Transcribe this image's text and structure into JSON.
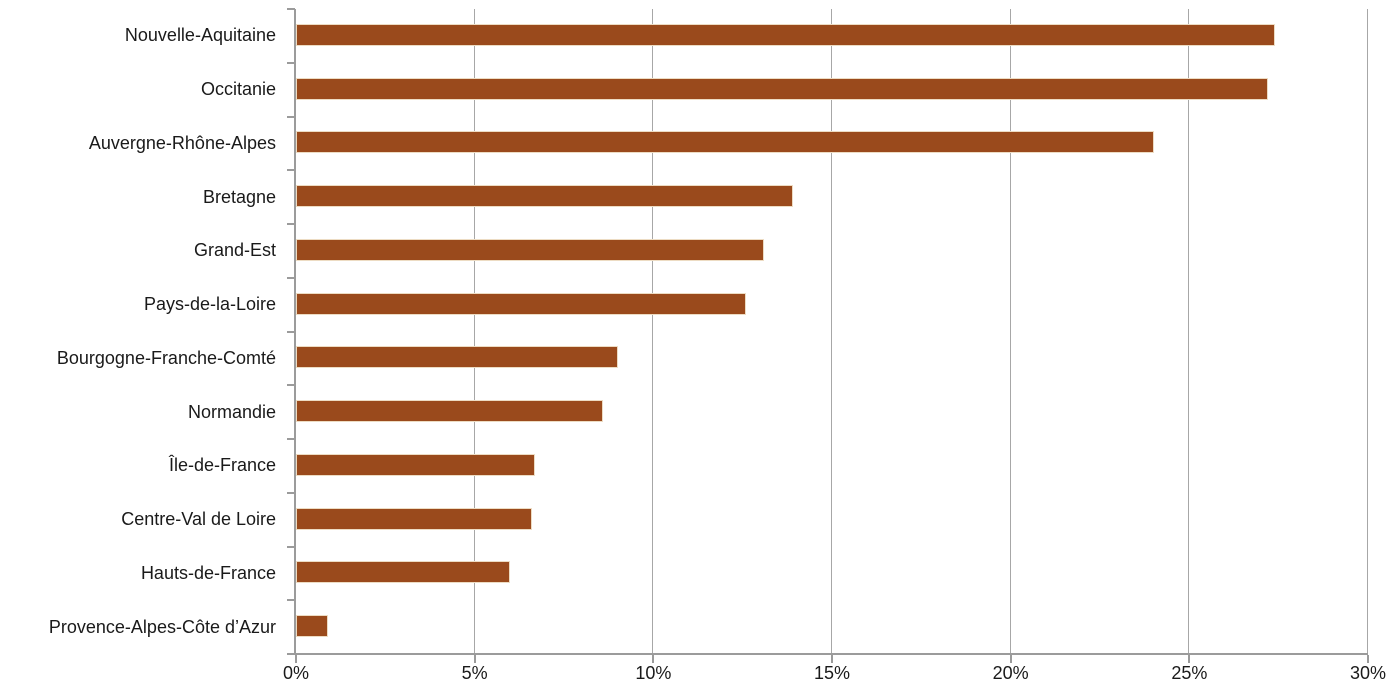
{
  "chart_data": {
    "type": "bar",
    "orientation": "horizontal",
    "title": "",
    "xlabel": "",
    "ylabel": "",
    "legend": "none",
    "grid": "vertical-only",
    "categories": [
      "Nouvelle-Aquitaine",
      "Occitanie",
      "Auvergne-Rhône-Alpes",
      "Bretagne",
      "Grand-Est",
      "Pays-de-la-Loire",
      "Bourgogne-Franche-Comté",
      "Normandie",
      "Île-de-France",
      "Centre-Val de Loire",
      "Hauts-de-France",
      "Provence-Alpes-Côte d’Azur"
    ],
    "values": [
      27.4,
      27.2,
      24.0,
      13.9,
      13.1,
      12.6,
      9.0,
      8.6,
      6.7,
      6.6,
      6.0,
      0.9
    ],
    "value_unit": "%",
    "xlim": [
      0,
      30
    ],
    "x_tick_values": [
      0,
      5,
      10,
      15,
      20,
      25,
      30
    ],
    "x_tick_labels": [
      "0%",
      "5%",
      "10%",
      "15%",
      "20%",
      "25%",
      "30%"
    ],
    "colors": {
      "bar": "#9A4A1C",
      "bar_border": "#EDDCC3",
      "gridline": "#A7A7A7",
      "axis": "#9B9B9B",
      "text": "#1A1A1A",
      "background": "#FFFFFF"
    }
  }
}
